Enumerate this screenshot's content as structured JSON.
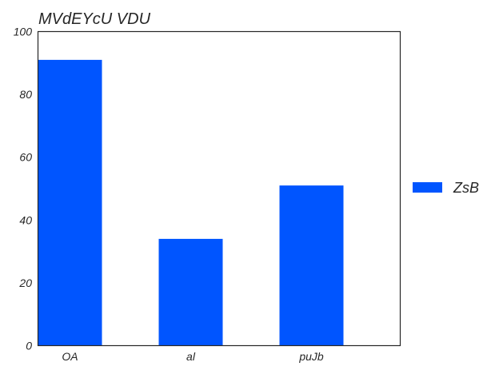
{
  "chart_data": {
    "type": "bar",
    "title": "MVdEYcU VDU",
    "xlabel": "",
    "ylabel": "",
    "categories": [
      "OA",
      "al",
      "puJb"
    ],
    "series": [
      {
        "name": "ZsB",
        "values": [
          91,
          34,
          51
        ],
        "color": "#0055ff"
      }
    ],
    "ylim": [
      0,
      100
    ],
    "yticks": [
      0,
      20,
      40,
      60,
      80,
      100
    ],
    "grid": false,
    "legend_position": "right"
  }
}
